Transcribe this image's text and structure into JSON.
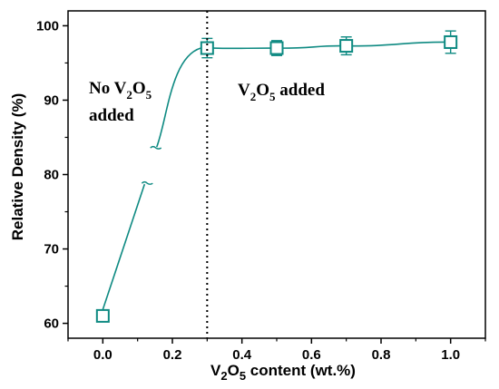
{
  "chart_data": {
    "type": "line",
    "xlabel_parts": [
      "V",
      "2",
      "O",
      "5",
      " content (wt.%)"
    ],
    "ylabel": "Relative Density (%)",
    "xlim": [
      -0.1,
      1.1
    ],
    "ylim": [
      58,
      102
    ],
    "x_ticks": [
      0.0,
      0.2,
      0.4,
      0.6,
      0.8,
      1.0
    ],
    "x_tick_labels": [
      "0.0",
      "0.2",
      "0.4",
      "0.6",
      "0.8",
      "1.0"
    ],
    "y_ticks": [
      60,
      70,
      80,
      90,
      100
    ],
    "y_tick_labels": [
      "60",
      "70",
      "80",
      "90",
      "100"
    ],
    "series": [
      {
        "x": [
          0.0,
          0.3,
          0.5,
          0.7,
          1.0
        ],
        "values": [
          61.0,
          97.0,
          97.0,
          97.3,
          97.8
        ],
        "error": [
          0,
          1.3,
          1.0,
          1.2,
          1.5
        ],
        "color": "#0e8a82",
        "marker": "open-square"
      }
    ],
    "divider_x": 0.3,
    "annotations": {
      "left_parts": [
        "No V",
        "2",
        "O",
        "5"
      ],
      "left_line2": "added",
      "right_parts": [
        "V",
        "2",
        "O",
        "5",
        " added"
      ]
    }
  }
}
